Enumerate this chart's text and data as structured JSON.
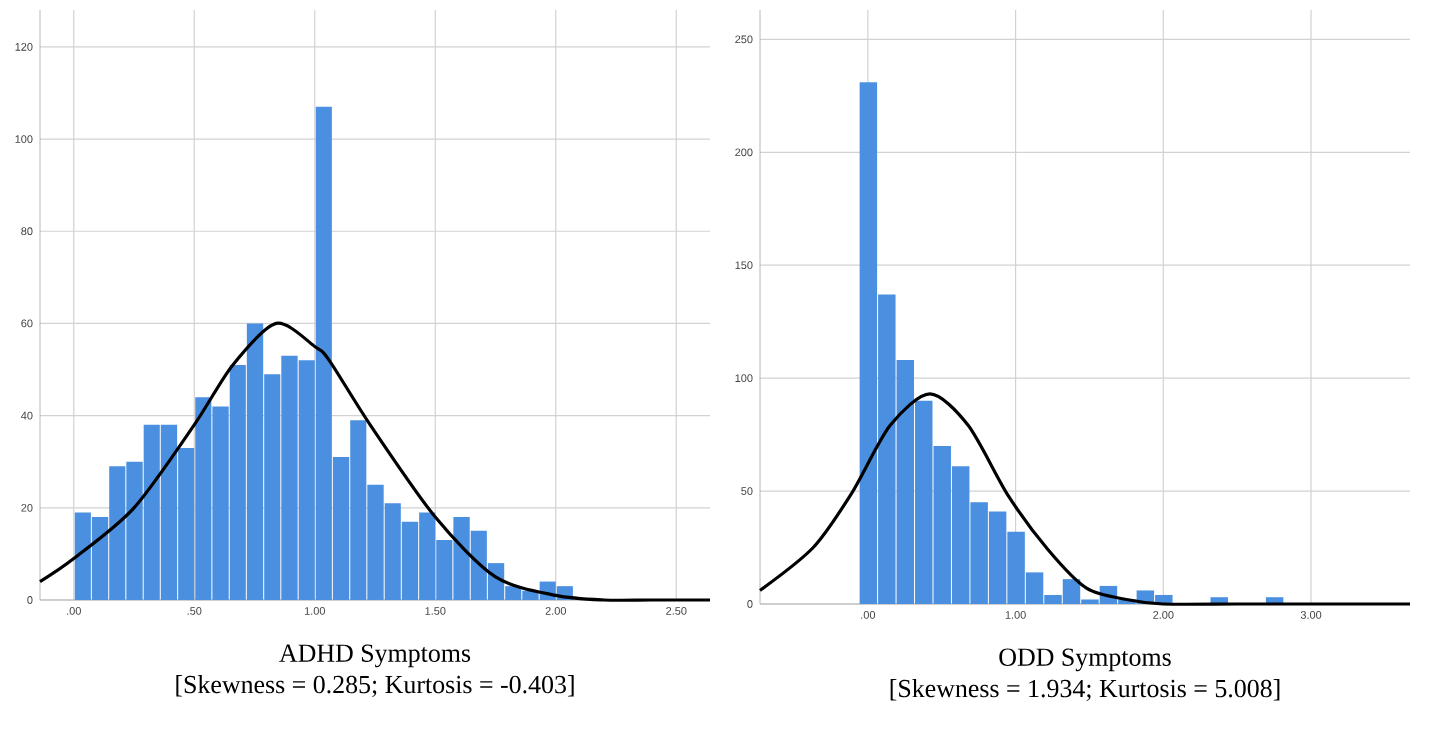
{
  "chart_data": [
    {
      "type": "histogram",
      "xlabel": "ADHD Symptoms",
      "annotations": [
        "[Skewness = 0.285; Kurtosis = -0.403]"
      ],
      "series": [
        {
          "type": "histogram",
          "color": "#4a8fe0",
          "bins": [
            0,
            0.071,
            0.143,
            0.214,
            0.286,
            0.357,
            0.429,
            0.5,
            0.571,
            0.643,
            0.714,
            0.786,
            0.857,
            0.929,
            1.0,
            1.071,
            1.143,
            1.214,
            1.286,
            1.357,
            1.429,
            1.5,
            1.571,
            1.643,
            1.714,
            1.786,
            1.857,
            1.929,
            2.0,
            2.071
          ],
          "values": [
            19,
            18,
            29,
            30,
            38,
            38,
            33,
            44,
            42,
            51,
            60,
            49,
            53,
            52,
            107,
            31,
            39,
            25,
            21,
            17,
            19,
            13,
            18,
            15,
            8,
            3,
            2,
            4,
            3
          ]
        },
        {
          "type": "line",
          "color": "#000000",
          "x": [
            -0.14,
            0,
            0.25,
            0.5,
            0.66,
            0.84,
            1.0,
            1.06,
            1.23,
            1.5,
            1.75,
            2.0,
            2.2,
            2.4,
            2.64
          ],
          "values": [
            4,
            9,
            20,
            38,
            51,
            60,
            55,
            52,
            38,
            18,
            5,
            1,
            0,
            0,
            0
          ]
        }
      ],
      "xlim": [
        -0.14,
        2.64
      ],
      "ylim": [
        0,
        128
      ],
      "xticks": [
        {
          "value": 0,
          "label": ".00"
        },
        {
          "value": 0.5,
          "label": ".50"
        },
        {
          "value": 1.0,
          "label": "1.00"
        },
        {
          "value": 1.5,
          "label": "1.50"
        },
        {
          "value": 2.0,
          "label": "2.00"
        },
        {
          "value": 2.5,
          "label": "2.50"
        }
      ],
      "yticks": [
        0,
        20,
        40,
        60,
        80,
        100,
        120
      ],
      "grid": true
    },
    {
      "type": "histogram",
      "xlabel": "ODD Symptoms",
      "annotations": [
        "[Skewness = 1.934; Kurtosis = 5.008]"
      ],
      "series": [
        {
          "type": "histogram",
          "color": "#4a8fe0",
          "bins": [
            -0.0625,
            0.0625,
            0.1875,
            0.3125,
            0.4375,
            0.5625,
            0.6875,
            0.8125,
            0.9375,
            1.0625,
            1.1875,
            1.3125,
            1.4375,
            1.5625,
            1.6875,
            1.8125,
            1.9375,
            2.0625,
            2.1875,
            2.3125,
            2.4375,
            2.5625,
            2.6875,
            2.8125
          ],
          "values": [
            231,
            137,
            108,
            90,
            70,
            61,
            45,
            41,
            32,
            14,
            4,
            11,
            2,
            8,
            2,
            6,
            4,
            0,
            0,
            3,
            0,
            0,
            3
          ]
        },
        {
          "type": "line",
          "color": "#000000",
          "x": [
            -0.73,
            -0.37,
            -0.11,
            0.15,
            0.42,
            0.68,
            0.95,
            1.22,
            1.48,
            1.75,
            2.0,
            2.5,
            3.0,
            3.67
          ],
          "values": [
            6,
            25,
            49,
            79,
            93,
            79,
            48,
            24,
            7,
            2,
            0,
            0,
            0,
            0
          ]
        }
      ],
      "xlim": [
        -0.73,
        3.67
      ],
      "ylim": [
        0,
        263
      ],
      "xticks": [
        {
          "value": 0,
          "label": ".00"
        },
        {
          "value": 1.0,
          "label": "1.00"
        },
        {
          "value": 2.0,
          "label": "2.00"
        },
        {
          "value": 3.0,
          "label": "3.00"
        }
      ],
      "yticks": [
        0,
        50,
        100,
        150,
        200,
        250
      ],
      "grid": true
    }
  ]
}
